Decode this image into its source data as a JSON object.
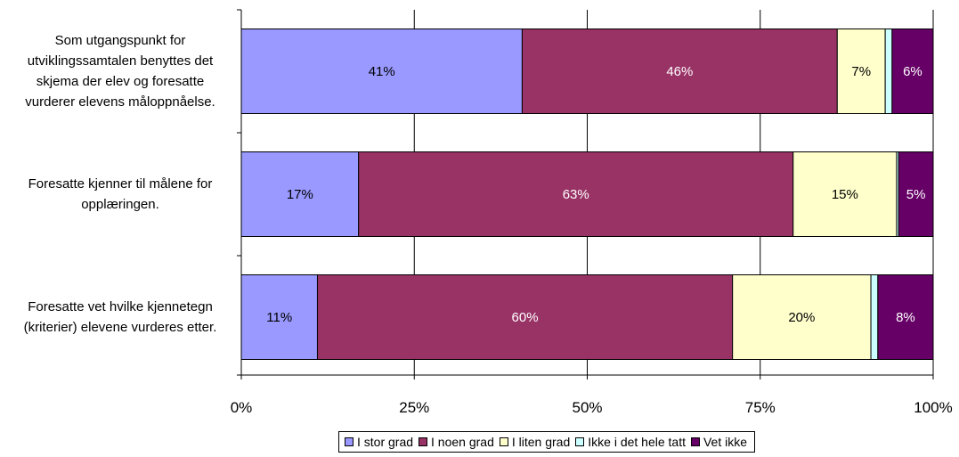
{
  "chart_data": {
    "type": "bar",
    "orientation": "horizontal",
    "stacked": true,
    "stack_mode": "percent",
    "categories": [
      "Som utgangspunkt for utviklingssamtalen benyttes det skjema der elev og foresatte vurderer elevens måloppnåelse.",
      "Foresatte kjenner til målene for opplæringen.",
      "Foresatte vet hvilke kjennetegn (kriterier) elevene vurderes etter."
    ],
    "category_lines": [
      [
        "Som utgangspunkt for",
        "utviklingssamtalen benyttes det",
        "skjema der elev og foresatte",
        "vurderer elevens måloppnåelse."
      ],
      [
        "Foresatte kjenner til målene for",
        "opplæringen."
      ],
      [
        "Foresatte vet hvilke kjennetegn",
        "(kriterier) elevene vurderes etter."
      ]
    ],
    "series": [
      {
        "name": "I stor grad",
        "color": "#9999ff",
        "label_color": "#000000",
        "values": [
          41,
          17,
          11
        ],
        "labels": [
          "41%",
          "17%",
          "11%"
        ]
      },
      {
        "name": "I noen grad",
        "color": "#993366",
        "label_color": "#ffffff",
        "values": [
          46,
          63,
          60
        ],
        "labels": [
          "46%",
          "63%",
          "60%"
        ]
      },
      {
        "name": "I liten grad",
        "color": "#ffffcc",
        "label_color": "#000000",
        "values": [
          7,
          15,
          20
        ],
        "labels": [
          "7%",
          "15%",
          "20%"
        ]
      },
      {
        "name": "Ikke i det hele tatt",
        "color": "#ccffff",
        "label_color": "#000000",
        "values": [
          1,
          0.3,
          1
        ],
        "labels": [
          "",
          "",
          ""
        ]
      },
      {
        "name": "Vet ikke",
        "color": "#660066",
        "label_color": "#ffffff",
        "values": [
          6,
          5,
          8
        ],
        "labels": [
          "6%",
          "5%",
          "8%"
        ]
      }
    ],
    "x_axis": {
      "ticks": [
        0,
        25,
        50,
        75,
        100
      ],
      "tick_labels": [
        "0%",
        "25%",
        "50%",
        "75%",
        "100%"
      ],
      "range": [
        0,
        100
      ]
    },
    "grid": true,
    "legend": {
      "position": "bottom"
    }
  }
}
